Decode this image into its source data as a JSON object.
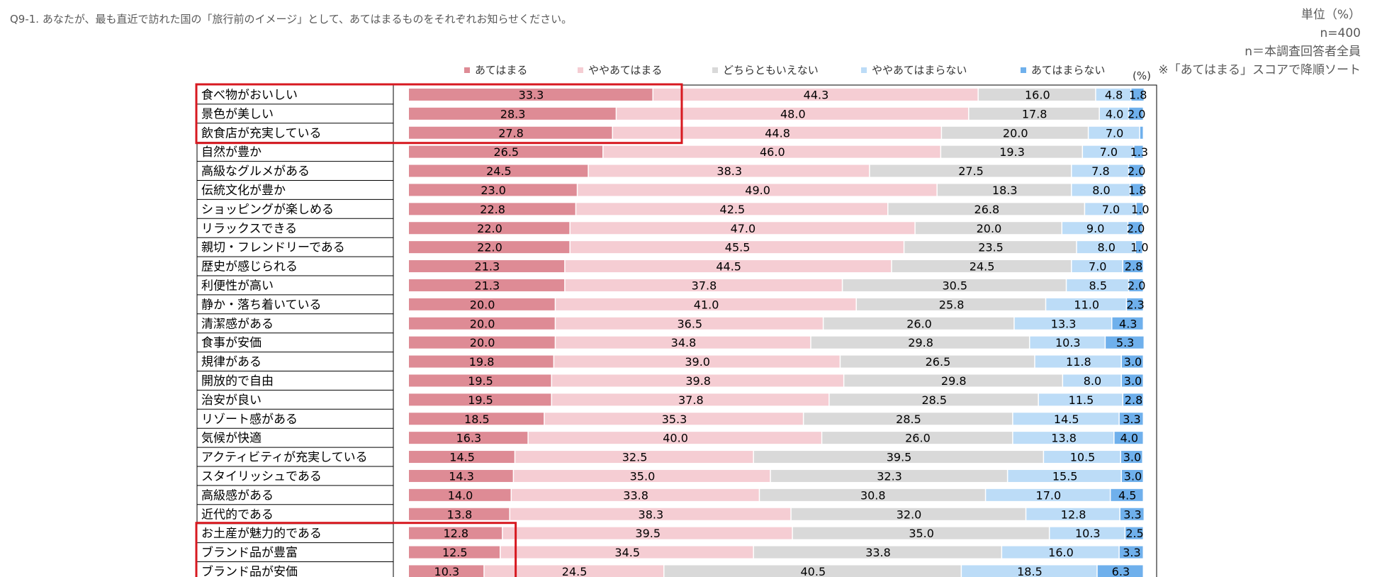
{
  "question": "Q9-1.  あなたが、最も直近で訪れた国の「旅行前のイメージ」として、あてはまるものをそれぞれお知らせください。",
  "unit_label": "単位（%）",
  "sample_size": "n=400",
  "base_note": "n＝本調査回答者全員",
  "sort_note": "※「あてはまる」スコアで降順ソート",
  "percent_mark": "(%)",
  "colors": {
    "s1": "#de8b95",
    "s2": "#f5cdd3",
    "s3": "#d9d9d9",
    "s4": "#bcdcf7",
    "s5": "#6fb0ec",
    "highlight": "#d71920",
    "axis": "#000000",
    "text": "#000000"
  },
  "chart_data": {
    "type": "bar",
    "orientation": "horizontal",
    "stacked": "100%",
    "title": "",
    "xlabel": "",
    "ylabel": "",
    "xlim": [
      0,
      100
    ],
    "legend_position": "top",
    "series": [
      {
        "name": "あてはまる",
        "values": [
          33.3,
          28.3,
          27.8,
          26.5,
          24.5,
          23.0,
          22.8,
          22.0,
          22.0,
          21.3,
          21.3,
          20.0,
          20.0,
          20.0,
          19.8,
          19.5,
          19.5,
          18.5,
          16.3,
          14.5,
          14.3,
          14.0,
          13.8,
          12.8,
          12.5,
          10.3
        ]
      },
      {
        "name": "ややあてはまる",
        "values": [
          44.3,
          48.0,
          44.8,
          46.0,
          38.3,
          49.0,
          42.5,
          47.0,
          45.5,
          44.5,
          37.8,
          41.0,
          36.5,
          34.8,
          39.0,
          39.8,
          37.8,
          35.3,
          40.0,
          32.5,
          35.0,
          33.8,
          38.3,
          39.5,
          34.5,
          24.5
        ]
      },
      {
        "name": "どちらともいえない",
        "values": [
          16.0,
          17.8,
          20.0,
          19.3,
          27.5,
          18.3,
          26.8,
          20.0,
          23.5,
          24.5,
          30.5,
          25.8,
          26.0,
          29.8,
          26.5,
          29.8,
          28.5,
          28.5,
          26.0,
          39.5,
          32.3,
          30.8,
          32.0,
          35.0,
          33.8,
          40.5
        ]
      },
      {
        "name": "ややあてはまらない",
        "values": [
          4.8,
          4.0,
          7.0,
          7.0,
          7.8,
          8.0,
          7.0,
          9.0,
          8.0,
          7.0,
          8.5,
          11.0,
          13.3,
          10.3,
          11.8,
          8.0,
          11.5,
          14.5,
          13.8,
          10.5,
          15.5,
          17.0,
          12.8,
          10.3,
          16.0,
          18.5
        ]
      },
      {
        "name": "あてはまらない",
        "values": [
          1.8,
          2.0,
          0.5,
          1.3,
          2.0,
          1.8,
          1.0,
          2.0,
          1.0,
          2.8,
          2.0,
          2.3,
          4.3,
          5.3,
          3.0,
          3.0,
          2.8,
          3.3,
          4.0,
          3.0,
          3.0,
          4.5,
          3.3,
          2.5,
          3.3,
          6.3
        ]
      }
    ],
    "categories": [
      "食べ物がおいしい",
      "景色が美しい",
      "飲食店が充実している",
      "自然が豊か",
      "高級なグルメがある",
      "伝統文化が豊か",
      "ショッピングが楽しめる",
      "リラックスできる",
      "親切・フレンドリーである",
      "歴史が感じられる",
      "利便性が高い",
      "静か・落ち着いている",
      "清潔感がある",
      "食事が安価",
      "規律がある",
      "開放的で自由",
      "治安が良い",
      "リゾート感がある",
      "気候が快適",
      "アクティビティが充実している",
      "スタイリッシュである",
      "高級感がある",
      "近代的である",
      "お土産が魅力的である",
      "ブランド品が豊富",
      "ブランド品が安価"
    ],
    "labels": [
      [
        "33.3",
        "44.3",
        "16.0",
        "4.8",
        "1.8"
      ],
      [
        "28.3",
        "48.0",
        "17.8",
        "4.0",
        "2.0"
      ],
      [
        "27.8",
        "44.8",
        "20.0",
        "7.0",
        ""
      ],
      [
        "26.5",
        "46.0",
        "19.3",
        "7.0",
        "1.3"
      ],
      [
        "24.5",
        "38.3",
        "27.5",
        "7.8",
        "2.0"
      ],
      [
        "23.0",
        "49.0",
        "18.3",
        "8.0",
        "1.8"
      ],
      [
        "22.8",
        "42.5",
        "26.8",
        "7.0",
        "1.0"
      ],
      [
        "22.0",
        "47.0",
        "20.0",
        "9.0",
        "2.0"
      ],
      [
        "22.0",
        "45.5",
        "23.5",
        "8.0",
        "1.0"
      ],
      [
        "21.3",
        "44.5",
        "24.5",
        "7.0",
        "2.8"
      ],
      [
        "21.3",
        "37.8",
        "30.5",
        "8.5",
        "2.0"
      ],
      [
        "20.0",
        "41.0",
        "25.8",
        "11.0",
        "2.3"
      ],
      [
        "20.0",
        "36.5",
        "26.0",
        "13.3",
        "4.3"
      ],
      [
        "20.0",
        "34.8",
        "29.8",
        "10.3",
        "5.3"
      ],
      [
        "19.8",
        "39.0",
        "26.5",
        "11.8",
        "3.0"
      ],
      [
        "19.5",
        "39.8",
        "29.8",
        "8.0",
        "3.0"
      ],
      [
        "19.5",
        "37.8",
        "28.5",
        "11.5",
        "2.8"
      ],
      [
        "18.5",
        "35.3",
        "28.5",
        "14.5",
        "3.3"
      ],
      [
        "16.3",
        "40.0",
        "26.0",
        "13.8",
        "4.0"
      ],
      [
        "14.5",
        "32.5",
        "39.5",
        "10.5",
        "3.0"
      ],
      [
        "14.3",
        "35.0",
        "32.3",
        "15.5",
        "3.0"
      ],
      [
        "14.0",
        "33.8",
        "30.8",
        "17.0",
        "4.5"
      ],
      [
        "13.8",
        "38.3",
        "32.0",
        "12.8",
        "3.3"
      ],
      [
        "12.8",
        "39.5",
        "35.0",
        "10.3",
        "2.5"
      ],
      [
        "12.5",
        "34.5",
        "33.8",
        "16.0",
        "3.3"
      ],
      [
        "10.3",
        "24.5",
        "40.5",
        "18.5",
        "6.3"
      ]
    ],
    "highlight_top_rows": 3,
    "highlight_bottom_rows": 3
  }
}
